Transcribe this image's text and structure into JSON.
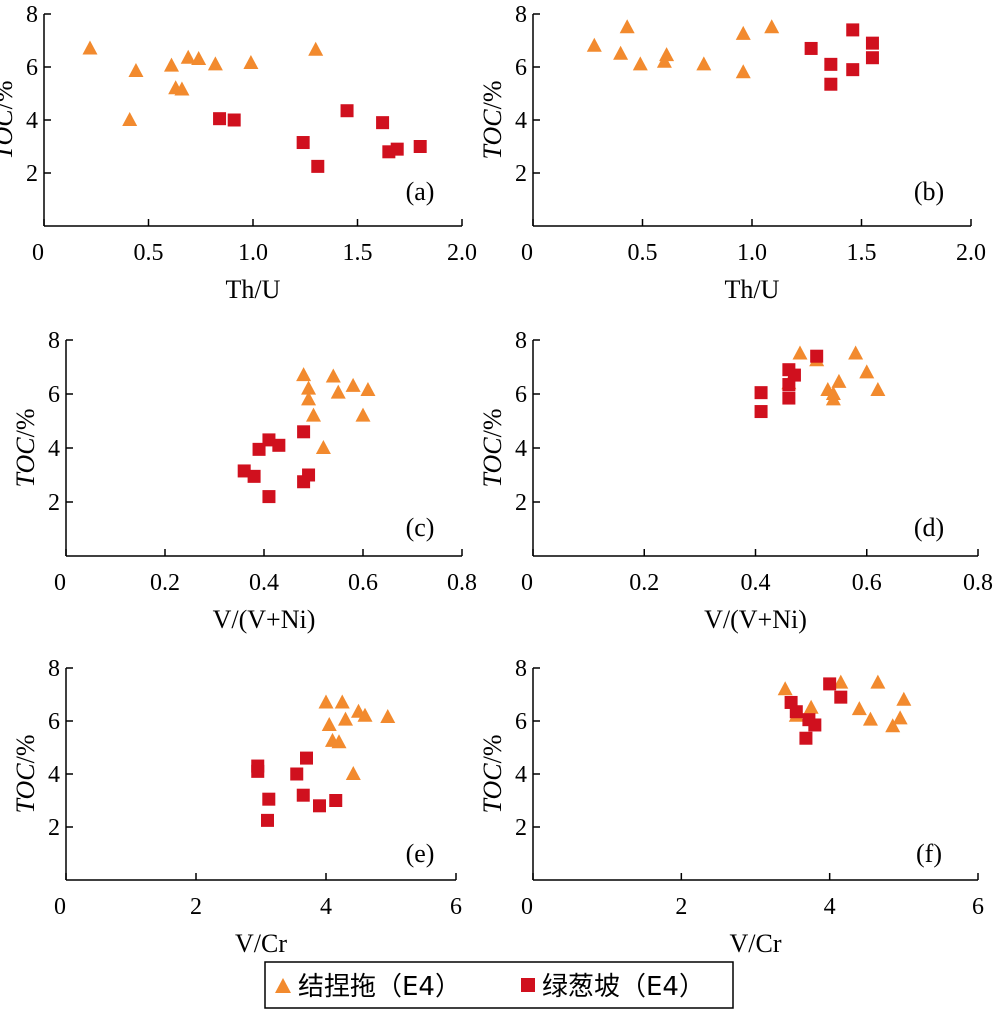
{
  "colors": {
    "E4_jieniyi": "#f28a2e",
    "E4_lvcongpo": "#d0101e",
    "axis": "#000000"
  },
  "legend": {
    "items": [
      {
        "label": "结捏拖（E4）",
        "marker": "triangle",
        "color": "#f28a2e"
      },
      {
        "label": "绿葱坡（E4）",
        "marker": "square",
        "color": "#d0101e"
      }
    ]
  },
  "chart_data": [
    {
      "type": "scatter",
      "panel": "(a)",
      "xlabel": "Th/U",
      "ylabel_italic": "TOC",
      "ylabel_unit": "/%",
      "xlim": [
        0,
        2.0
      ],
      "ylim": [
        0,
        8
      ],
      "xticks": [
        "0",
        "0.5",
        "1.0",
        "1.5",
        "2.0"
      ],
      "yticks": [
        "2",
        "4",
        "6",
        "8"
      ],
      "series": [
        {
          "marker": "triangle",
          "color": "#f28a2e",
          "points": [
            [
              0.22,
              6.7
            ],
            [
              0.44,
              5.85
            ],
            [
              0.41,
              4.0
            ],
            [
              0.61,
              6.05
            ],
            [
              0.63,
              5.2
            ],
            [
              0.66,
              5.15
            ],
            [
              0.69,
              6.35
            ],
            [
              0.74,
              6.3
            ],
            [
              0.82,
              6.1
            ],
            [
              0.99,
              6.15
            ],
            [
              1.3,
              6.65
            ]
          ]
        },
        {
          "marker": "square",
          "color": "#d0101e",
          "points": [
            [
              0.84,
              4.05
            ],
            [
              0.91,
              4.0
            ],
            [
              1.24,
              3.15
            ],
            [
              1.31,
              2.25
            ],
            [
              1.45,
              4.35
            ],
            [
              1.62,
              3.9
            ],
            [
              1.65,
              2.8
            ],
            [
              1.69,
              2.9
            ],
            [
              1.8,
              3.0
            ]
          ]
        }
      ]
    },
    {
      "type": "scatter",
      "panel": "(b)",
      "xlabel": "Th/U",
      "ylabel_italic": "TOC",
      "ylabel_unit": "/%",
      "xlim": [
        0,
        2.0
      ],
      "ylim": [
        0,
        8
      ],
      "xticks": [
        "0",
        "0.5",
        "1.0",
        "1.5",
        "2.0"
      ],
      "yticks": [
        "2",
        "4",
        "6",
        "8"
      ],
      "series": [
        {
          "marker": "triangle",
          "color": "#f28a2e",
          "points": [
            [
              0.28,
              6.8
            ],
            [
              0.4,
              6.5
            ],
            [
              0.43,
              7.5
            ],
            [
              0.49,
              6.1
            ],
            [
              0.6,
              6.2
            ],
            [
              0.61,
              6.45
            ],
            [
              0.78,
              6.1
            ],
            [
              0.96,
              5.8
            ],
            [
              0.96,
              7.25
            ],
            [
              1.09,
              7.5
            ]
          ]
        },
        {
          "marker": "square",
          "color": "#d0101e",
          "points": [
            [
              1.27,
              6.7
            ],
            [
              1.36,
              6.1
            ],
            [
              1.36,
              5.35
            ],
            [
              1.46,
              7.4
            ],
            [
              1.46,
              5.9
            ],
            [
              1.55,
              6.9
            ],
            [
              1.55,
              6.35
            ]
          ]
        }
      ]
    },
    {
      "type": "scatter",
      "panel": "(c)",
      "xlabel": "V/(V+Ni)",
      "ylabel_italic": "TOC",
      "ylabel_unit": "/%",
      "xlim": [
        0,
        0.8
      ],
      "ylim": [
        0,
        8
      ],
      "xticks": [
        "0",
        "0.2",
        "0.4",
        "0.6",
        "0.8"
      ],
      "yticks": [
        "2",
        "4",
        "6",
        "8"
      ],
      "series": [
        {
          "marker": "triangle",
          "color": "#f28a2e",
          "points": [
            [
              0.48,
              6.7
            ],
            [
              0.49,
              6.2
            ],
            [
              0.49,
              5.8
            ],
            [
              0.5,
              5.2
            ],
            [
              0.52,
              4.0
            ],
            [
              0.54,
              6.65
            ],
            [
              0.55,
              6.05
            ],
            [
              0.58,
              6.3
            ],
            [
              0.6,
              5.2
            ],
            [
              0.61,
              6.15
            ]
          ]
        },
        {
          "marker": "square",
          "color": "#d0101e",
          "points": [
            [
              0.36,
              3.15
            ],
            [
              0.38,
              2.95
            ],
            [
              0.39,
              3.95
            ],
            [
              0.41,
              4.3
            ],
            [
              0.41,
              2.2
            ],
            [
              0.43,
              4.1
            ],
            [
              0.48,
              4.6
            ],
            [
              0.48,
              2.75
            ],
            [
              0.49,
              3.0
            ]
          ]
        }
      ]
    },
    {
      "type": "scatter",
      "panel": "(d)",
      "xlabel": "V/(V+Ni)",
      "ylabel_italic": "TOC",
      "ylabel_unit": "/%",
      "xlim": [
        0,
        0.8
      ],
      "ylim": [
        0,
        8
      ],
      "xticks": [
        "0",
        "0.2",
        "0.4",
        "0.6",
        "0.8"
      ],
      "yticks": [
        "2",
        "4",
        "6",
        "8"
      ],
      "series": [
        {
          "marker": "triangle",
          "color": "#f28a2e",
          "points": [
            [
              0.48,
              7.5
            ],
            [
              0.46,
              6.4
            ],
            [
              0.51,
              7.25
            ],
            [
              0.53,
              6.15
            ],
            [
              0.54,
              5.8
            ],
            [
              0.54,
              6.0
            ],
            [
              0.55,
              6.45
            ],
            [
              0.58,
              7.5
            ],
            [
              0.6,
              6.8
            ],
            [
              0.62,
              6.15
            ]
          ]
        },
        {
          "marker": "square",
          "color": "#d0101e",
          "points": [
            [
              0.41,
              6.05
            ],
            [
              0.41,
              5.35
            ],
            [
              0.46,
              6.9
            ],
            [
              0.46,
              6.35
            ],
            [
              0.46,
              5.85
            ],
            [
              0.47,
              6.7
            ],
            [
              0.51,
              7.4
            ]
          ]
        }
      ]
    },
    {
      "type": "scatter",
      "panel": "(e)",
      "xlabel": "V/Cr",
      "ylabel_italic": "TOC",
      "ylabel_unit": "/%",
      "xlim": [
        0,
        6
      ],
      "ylim": [
        0,
        8
      ],
      "xticks": [
        "0",
        "2",
        "4",
        "6"
      ],
      "yticks": [
        "2",
        "4",
        "6",
        "8"
      ],
      "series": [
        {
          "marker": "triangle",
          "color": "#f28a2e",
          "points": [
            [
              4.0,
              6.7
            ],
            [
              4.05,
              5.85
            ],
            [
              4.1,
              5.25
            ],
            [
              4.2,
              5.2
            ],
            [
              4.25,
              6.7
            ],
            [
              4.3,
              6.05
            ],
            [
              4.42,
              4.0
            ],
            [
              4.5,
              6.35
            ],
            [
              4.6,
              6.2
            ],
            [
              4.95,
              6.15
            ]
          ]
        },
        {
          "marker": "square",
          "color": "#d0101e",
          "points": [
            [
              2.95,
              4.3
            ],
            [
              2.95,
              4.1
            ],
            [
              3.12,
              3.05
            ],
            [
              3.1,
              2.25
            ],
            [
              3.55,
              4.0
            ],
            [
              3.65,
              3.2
            ],
            [
              3.7,
              4.6
            ],
            [
              3.9,
              2.8
            ],
            [
              4.15,
              3.0
            ]
          ]
        }
      ]
    },
    {
      "type": "scatter",
      "panel": "(f)",
      "xlabel": "V/Cr",
      "ylabel_italic": "TOC",
      "ylabel_unit": "/%",
      "xlim": [
        0,
        6
      ],
      "ylim": [
        0,
        8
      ],
      "xticks": [
        "0",
        "2",
        "4",
        "6"
      ],
      "yticks": [
        "2",
        "4",
        "6",
        "8"
      ],
      "series": [
        {
          "marker": "triangle",
          "color": "#f28a2e",
          "points": [
            [
              3.4,
              7.2
            ],
            [
              3.55,
              6.2
            ],
            [
              3.75,
              6.5
            ],
            [
              4.15,
              7.45
            ],
            [
              4.4,
              6.45
            ],
            [
              4.55,
              6.05
            ],
            [
              4.65,
              7.45
            ],
            [
              4.85,
              5.8
            ],
            [
              4.95,
              6.1
            ],
            [
              5.0,
              6.8
            ]
          ]
        },
        {
          "marker": "square",
          "color": "#d0101e",
          "points": [
            [
              3.48,
              6.7
            ],
            [
              3.55,
              6.35
            ],
            [
              3.68,
              5.35
            ],
            [
              3.72,
              6.05
            ],
            [
              3.8,
              5.85
            ],
            [
              4.0,
              7.4
            ],
            [
              4.15,
              6.9
            ]
          ]
        }
      ]
    }
  ]
}
